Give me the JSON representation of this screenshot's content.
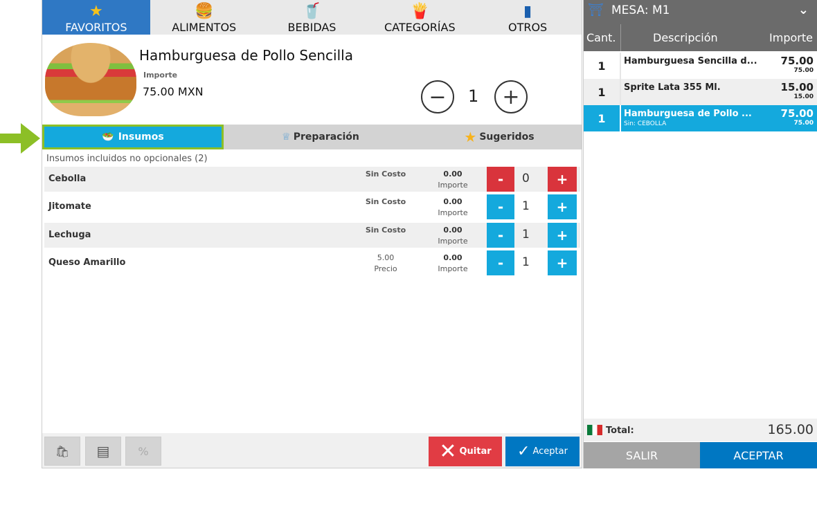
{
  "tabs": [
    {
      "label": "FAVORITOS",
      "icon": "star-icon"
    },
    {
      "label": "ALIMENTOS",
      "icon": "burger-icon"
    },
    {
      "label": "BEBIDAS",
      "icon": "drink-icon"
    },
    {
      "label": "CATEGORÍAS",
      "icon": "combo-icon"
    },
    {
      "label": "OTROS",
      "icon": "bag-icon"
    }
  ],
  "product": {
    "name": "Hamburguesa de Pollo Sencilla",
    "price_label": "Importe",
    "price": "75.00 MXN",
    "quantity": "1"
  },
  "subtabs": [
    {
      "label": "Insumos"
    },
    {
      "label": "Preparación"
    },
    {
      "label": "Sugeridos"
    }
  ],
  "list_title": "Insumos incluidos no opcionales (2)",
  "ingredients": [
    {
      "name": "Cebolla",
      "cost": "Sin Costo",
      "cost_label": "",
      "amount": "0.00",
      "amount_label": "Importe",
      "qty": "0",
      "removed": true
    },
    {
      "name": "Jitomate",
      "cost": "Sin Costo",
      "cost_label": "",
      "amount": "0.00",
      "amount_label": "Importe",
      "qty": "1"
    },
    {
      "name": "Lechuga",
      "cost": "Sin Costo",
      "cost_label": "",
      "amount": "0.00",
      "amount_label": "Importe",
      "qty": "1"
    },
    {
      "name": "Queso Amarillo",
      "cost": "5.00",
      "cost_label": "Precio",
      "amount": "0.00",
      "amount_label": "Importe",
      "qty": "1"
    }
  ],
  "actions": {
    "quitar": "Quitar",
    "aceptar": "Aceptar"
  },
  "order": {
    "title": "MESA: M1",
    "headers": {
      "qty": "Cant.",
      "desc": "Descripción",
      "amount": "Importe"
    },
    "items": [
      {
        "qty": "1",
        "desc": "Hamburguesa Sencilla d...",
        "note": "",
        "price": "75.00",
        "sub": "75.00"
      },
      {
        "qty": "1",
        "desc": "Sprite Lata 355 Ml.",
        "note": "",
        "price": "15.00",
        "sub": "15.00"
      },
      {
        "qty": "1",
        "desc": "Hamburguesa de Pollo ...",
        "note": "Sin: CEBOLLA",
        "price": "75.00",
        "sub": "75.00",
        "selected": true
      }
    ],
    "total_label": "Total:",
    "total": "165.00",
    "salir": "SALIR",
    "aceptar": "ACEPTAR"
  },
  "colors": {
    "accent": "#14a9dd",
    "blue": "#0077c2",
    "red": "#e13c44",
    "arrow": "#8cbf26"
  }
}
